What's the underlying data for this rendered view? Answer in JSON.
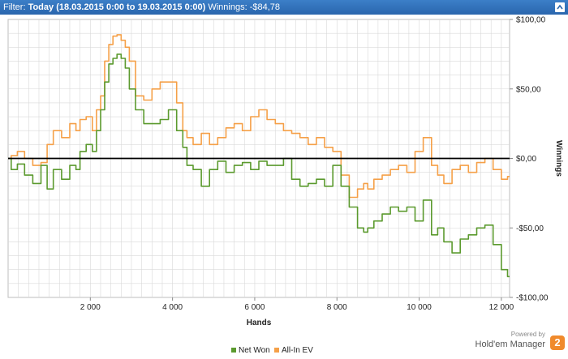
{
  "header": {
    "filter_label": "Filter:",
    "filter_value": "Today (18.03.2015 0:00 to 19.03.2015 0:00)",
    "winnings_label": "Winnings:",
    "winnings_value": "-$84,78"
  },
  "brand": {
    "powered_by": "Powered by",
    "name": "Hold'em Manager",
    "logo_text": "2"
  },
  "colors": {
    "header": "#2f6fb8",
    "net_won": "#5b9a2e",
    "all_in_ev": "#f5a048",
    "zero_line": "#000000",
    "grid": "#d9d9d9"
  },
  "chart_data": {
    "type": "line",
    "xlabel": "Hands",
    "ylabel": "Winnings",
    "xlim": [
      0,
      12200
    ],
    "ylim": [
      -100,
      100
    ],
    "x_ticks": [
      2000,
      4000,
      6000,
      8000,
      10000,
      12000
    ],
    "x_tick_labels": [
      "2 000",
      "4 000",
      "6 000",
      "8 000",
      "10 000",
      "12 000"
    ],
    "y_ticks": [
      100,
      50,
      0,
      -50,
      -100
    ],
    "y_tick_labels": [
      "$100,00",
      "$50,00",
      "$0,00",
      "-$50,00",
      "-$100,00"
    ],
    "grid": true,
    "legend_position": "bottom-center",
    "series": [
      {
        "name": "Net Won",
        "x": [
          0,
          150,
          300,
          500,
          700,
          900,
          1000,
          1200,
          1400,
          1600,
          1700,
          1800,
          2000,
          2100,
          2200,
          2300,
          2400,
          2500,
          2600,
          2700,
          2800,
          2900,
          3000,
          3200,
          3400,
          3600,
          3800,
          4000,
          4200,
          4300,
          4400,
          4600,
          4800,
          5000,
          5200,
          5400,
          5600,
          5800,
          6000,
          6200,
          6400,
          6600,
          6800,
          7000,
          7200,
          7400,
          7600,
          7800,
          8000,
          8200,
          8400,
          8600,
          8700,
          8800,
          9000,
          9200,
          9400,
          9600,
          9800,
          10000,
          10200,
          10400,
          10500,
          10700,
          10900,
          11100,
          11300,
          11500,
          11700,
          11900,
          12100,
          12200
        ],
        "y": [
          0,
          -8,
          -4,
          -12,
          -18,
          -5,
          -22,
          -8,
          -15,
          -5,
          -8,
          5,
          10,
          5,
          20,
          35,
          55,
          68,
          72,
          75,
          72,
          65,
          50,
          35,
          25,
          25,
          28,
          35,
          20,
          8,
          -5,
          -8,
          -20,
          -8,
          -2,
          -10,
          -5,
          -3,
          -8,
          -2,
          -5,
          -5,
          0,
          -15,
          -20,
          -18,
          -15,
          -20,
          -5,
          -20,
          -35,
          -50,
          -53,
          -50,
          -45,
          -40,
          -35,
          -38,
          -35,
          -45,
          -30,
          -55,
          -50,
          -60,
          -68,
          -58,
          -55,
          -50,
          -48,
          -62,
          -80,
          -85
        ]
      },
      {
        "name": "All-In EV",
        "x": [
          0,
          150,
          300,
          500,
          700,
          900,
          1000,
          1200,
          1400,
          1600,
          1700,
          1800,
          2000,
          2100,
          2200,
          2300,
          2400,
          2500,
          2600,
          2700,
          2800,
          2900,
          3000,
          3200,
          3400,
          3600,
          3800,
          4000,
          4200,
          4300,
          4400,
          4600,
          4800,
          5000,
          5200,
          5400,
          5600,
          5800,
          6000,
          6200,
          6400,
          6600,
          6800,
          7000,
          7200,
          7400,
          7600,
          7800,
          8000,
          8200,
          8400,
          8600,
          8700,
          8800,
          9000,
          9200,
          9400,
          9600,
          9800,
          10000,
          10200,
          10400,
          10500,
          10700,
          10900,
          11100,
          11300,
          11500,
          11700,
          11900,
          12100,
          12200
        ],
        "y": [
          0,
          2,
          5,
          0,
          -5,
          -3,
          10,
          20,
          15,
          25,
          20,
          28,
          30,
          20,
          35,
          45,
          70,
          82,
          88,
          89,
          85,
          80,
          70,
          45,
          42,
          50,
          55,
          55,
          40,
          20,
          15,
          10,
          18,
          10,
          15,
          22,
          25,
          20,
          30,
          35,
          28,
          25,
          20,
          18,
          15,
          10,
          15,
          8,
          5,
          -12,
          -28,
          -22,
          -18,
          -22,
          -15,
          -12,
          -8,
          -5,
          -10,
          5,
          15,
          -5,
          -12,
          -18,
          -8,
          -5,
          -10,
          -3,
          0,
          -8,
          -15,
          -13
        ]
      }
    ]
  }
}
